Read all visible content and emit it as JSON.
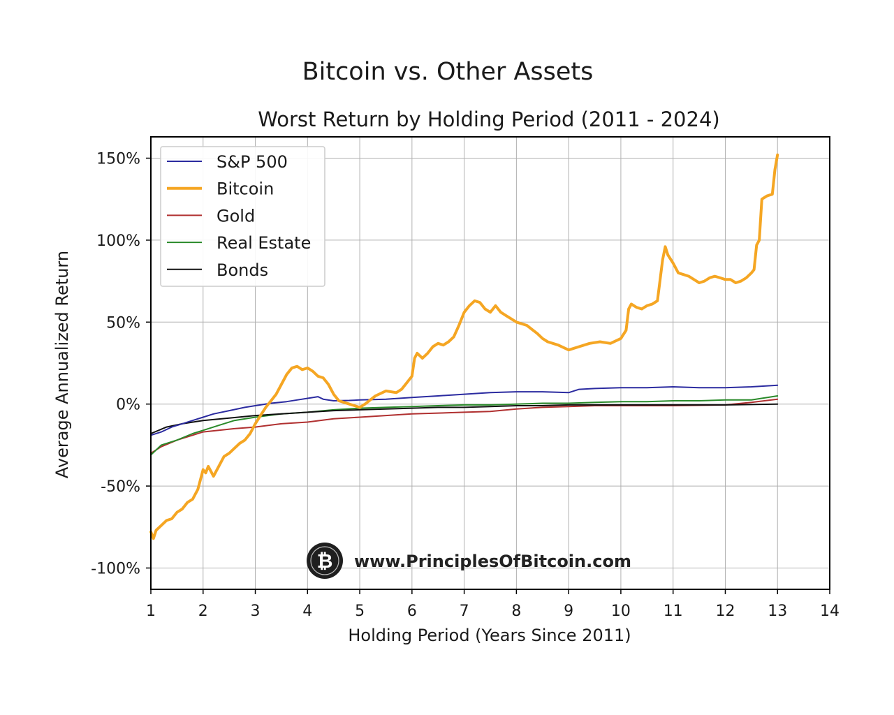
{
  "chart_data": {
    "type": "line",
    "suptitle": "Bitcoin vs. Other Assets",
    "title": "Worst Return by Holding Period (2011 - 2024)",
    "xlabel": "Holding Period (Years Since 2011)",
    "ylabel": "Average Annualized Return",
    "xlim": [
      1,
      14
    ],
    "ylim": [
      -113,
      163
    ],
    "x_ticks": [
      1,
      2,
      3,
      4,
      5,
      6,
      7,
      8,
      9,
      10,
      11,
      12,
      13,
      14
    ],
    "y_ticks": [
      {
        "value": 150,
        "label": "150%"
      },
      {
        "value": 100,
        "label": "100%"
      },
      {
        "value": 50,
        "label": "50%"
      },
      {
        "value": 0,
        "label": "0%"
      },
      {
        "value": -50,
        "label": "-50%"
      },
      {
        "value": -100,
        "label": "-100%"
      }
    ],
    "grid": true,
    "legend_position": "upper-left",
    "series": [
      {
        "name": "S&P 500",
        "color": "#2b2ba0",
        "width": 2,
        "points": [
          [
            1,
            -19
          ],
          [
            1.2,
            -17
          ],
          [
            1.4,
            -14
          ],
          [
            1.6,
            -12
          ],
          [
            1.8,
            -10
          ],
          [
            2,
            -8
          ],
          [
            2.2,
            -6
          ],
          [
            2.5,
            -4
          ],
          [
            2.8,
            -2
          ],
          [
            3,
            -1
          ],
          [
            3.3,
            0.5
          ],
          [
            3.6,
            1.5
          ],
          [
            3.8,
            2.5
          ],
          [
            4,
            3.5
          ],
          [
            4.2,
            4.5
          ],
          [
            4.3,
            3
          ],
          [
            4.5,
            2
          ],
          [
            4.8,
            2.2
          ],
          [
            5,
            2.5
          ],
          [
            5.5,
            3
          ],
          [
            6,
            4
          ],
          [
            6.5,
            5
          ],
          [
            7,
            6
          ],
          [
            7.5,
            7
          ],
          [
            8,
            7.5
          ],
          [
            8.5,
            7.5
          ],
          [
            9,
            7
          ],
          [
            9.2,
            9
          ],
          [
            9.5,
            9.5
          ],
          [
            10,
            10
          ],
          [
            10.5,
            10
          ],
          [
            11,
            10.5
          ],
          [
            11.5,
            10
          ],
          [
            12,
            10
          ],
          [
            12.5,
            10.5
          ],
          [
            13,
            11.5
          ]
        ]
      },
      {
        "name": "Bitcoin",
        "color": "#f5a623",
        "width": 4,
        "points": [
          [
            1,
            -78
          ],
          [
            1.05,
            -82
          ],
          [
            1.1,
            -77
          ],
          [
            1.2,
            -74
          ],
          [
            1.3,
            -71
          ],
          [
            1.4,
            -70
          ],
          [
            1.5,
            -66
          ],
          [
            1.6,
            -64
          ],
          [
            1.7,
            -60
          ],
          [
            1.8,
            -58
          ],
          [
            1.9,
            -52
          ],
          [
            2,
            -40
          ],
          [
            2.05,
            -42
          ],
          [
            2.1,
            -38
          ],
          [
            2.2,
            -44
          ],
          [
            2.3,
            -38
          ],
          [
            2.4,
            -32
          ],
          [
            2.5,
            -30
          ],
          [
            2.6,
            -27
          ],
          [
            2.7,
            -24
          ],
          [
            2.8,
            -22
          ],
          [
            2.9,
            -18
          ],
          [
            3,
            -12
          ],
          [
            3.1,
            -7
          ],
          [
            3.2,
            -2
          ],
          [
            3.3,
            2
          ],
          [
            3.4,
            6
          ],
          [
            3.5,
            12
          ],
          [
            3.6,
            18
          ],
          [
            3.7,
            22
          ],
          [
            3.8,
            23
          ],
          [
            3.9,
            21
          ],
          [
            4,
            22
          ],
          [
            4.1,
            20
          ],
          [
            4.2,
            17
          ],
          [
            4.3,
            16
          ],
          [
            4.4,
            12
          ],
          [
            4.5,
            6
          ],
          [
            4.6,
            2
          ],
          [
            4.7,
            1
          ],
          [
            4.8,
            0
          ],
          [
            4.9,
            -1
          ],
          [
            5,
            -2
          ],
          [
            5.1,
            0
          ],
          [
            5.3,
            5
          ],
          [
            5.5,
            8
          ],
          [
            5.7,
            7
          ],
          [
            5.8,
            9
          ],
          [
            5.9,
            13
          ],
          [
            6,
            17
          ],
          [
            6.05,
            28
          ],
          [
            6.1,
            31
          ],
          [
            6.2,
            28
          ],
          [
            6.3,
            31
          ],
          [
            6.4,
            35
          ],
          [
            6.5,
            37
          ],
          [
            6.6,
            36
          ],
          [
            6.7,
            38
          ],
          [
            6.8,
            41
          ],
          [
            6.9,
            48
          ],
          [
            7,
            56
          ],
          [
            7.1,
            60
          ],
          [
            7.2,
            63
          ],
          [
            7.3,
            62
          ],
          [
            7.4,
            58
          ],
          [
            7.5,
            56
          ],
          [
            7.6,
            60
          ],
          [
            7.7,
            56
          ],
          [
            7.8,
            54
          ],
          [
            7.9,
            52
          ],
          [
            8,
            50
          ],
          [
            8.2,
            48
          ],
          [
            8.4,
            43
          ],
          [
            8.5,
            40
          ],
          [
            8.6,
            38
          ],
          [
            8.8,
            36
          ],
          [
            9,
            33
          ],
          [
            9.2,
            35
          ],
          [
            9.4,
            37
          ],
          [
            9.6,
            38
          ],
          [
            9.8,
            37
          ],
          [
            10,
            40
          ],
          [
            10.1,
            45
          ],
          [
            10.15,
            58
          ],
          [
            10.2,
            61
          ],
          [
            10.3,
            59
          ],
          [
            10.4,
            58
          ],
          [
            10.5,
            60
          ],
          [
            10.6,
            61
          ],
          [
            10.7,
            63
          ],
          [
            10.8,
            88
          ],
          [
            10.85,
            96
          ],
          [
            10.9,
            91
          ],
          [
            11,
            86
          ],
          [
            11.1,
            80
          ],
          [
            11.2,
            79
          ],
          [
            11.3,
            78
          ],
          [
            11.4,
            76
          ],
          [
            11.5,
            74
          ],
          [
            11.6,
            75
          ],
          [
            11.7,
            77
          ],
          [
            11.8,
            78
          ],
          [
            11.9,
            77
          ],
          [
            12,
            76
          ],
          [
            12.1,
            76
          ],
          [
            12.2,
            74
          ],
          [
            12.3,
            75
          ],
          [
            12.4,
            77
          ],
          [
            12.5,
            80
          ],
          [
            12.55,
            82
          ],
          [
            12.6,
            97
          ],
          [
            12.65,
            100
          ],
          [
            12.7,
            125
          ],
          [
            12.8,
            127
          ],
          [
            12.9,
            128
          ],
          [
            12.95,
            143
          ],
          [
            13,
            152
          ]
        ]
      },
      {
        "name": "Gold",
        "color": "#b03030",
        "width": 2,
        "points": [
          [
            1,
            -30
          ],
          [
            1.2,
            -26
          ],
          [
            1.5,
            -22
          ],
          [
            1.8,
            -19
          ],
          [
            2,
            -17
          ],
          [
            2.3,
            -16
          ],
          [
            2.6,
            -15
          ],
          [
            3,
            -14
          ],
          [
            3.5,
            -12
          ],
          [
            4,
            -11
          ],
          [
            4.5,
            -9
          ],
          [
            5,
            -8
          ],
          [
            5.5,
            -7
          ],
          [
            6,
            -6
          ],
          [
            6.5,
            -5.5
          ],
          [
            7,
            -5
          ],
          [
            7.5,
            -4.5
          ],
          [
            8,
            -3
          ],
          [
            8.5,
            -2
          ],
          [
            9,
            -1.5
          ],
          [
            9.5,
            -1
          ],
          [
            10,
            -1
          ],
          [
            11,
            -1
          ],
          [
            12,
            -0.5
          ],
          [
            12.5,
            1
          ],
          [
            13,
            3
          ]
        ]
      },
      {
        "name": "Real Estate",
        "color": "#2a8a2a",
        "width": 2,
        "points": [
          [
            1,
            -31
          ],
          [
            1.2,
            -25
          ],
          [
            1.5,
            -22
          ],
          [
            1.8,
            -18
          ],
          [
            2,
            -16
          ],
          [
            2.3,
            -13
          ],
          [
            2.6,
            -10
          ],
          [
            3,
            -8
          ],
          [
            3.5,
            -6
          ],
          [
            4,
            -5
          ],
          [
            4.5,
            -3.5
          ],
          [
            5,
            -2.5
          ],
          [
            5.5,
            -2
          ],
          [
            6,
            -1.5
          ],
          [
            6.5,
            -1
          ],
          [
            7,
            -0.5
          ],
          [
            7.5,
            -0.5
          ],
          [
            8,
            0
          ],
          [
            8.5,
            0.5
          ],
          [
            9,
            0.5
          ],
          [
            9.5,
            1
          ],
          [
            10,
            1.5
          ],
          [
            10.5,
            1.5
          ],
          [
            11,
            2
          ],
          [
            11.5,
            2
          ],
          [
            12,
            2.5
          ],
          [
            12.5,
            2.5
          ],
          [
            13,
            5
          ]
        ]
      },
      {
        "name": "Bonds",
        "color": "#111111",
        "width": 2,
        "points": [
          [
            1,
            -18
          ],
          [
            1.3,
            -14
          ],
          [
            1.6,
            -12
          ],
          [
            2,
            -10
          ],
          [
            2.5,
            -8.5
          ],
          [
            3,
            -7
          ],
          [
            3.5,
            -6
          ],
          [
            4,
            -5
          ],
          [
            4.5,
            -4
          ],
          [
            5,
            -3.5
          ],
          [
            5.5,
            -3
          ],
          [
            6,
            -2.5
          ],
          [
            6.5,
            -2
          ],
          [
            7,
            -2
          ],
          [
            7.5,
            -1.5
          ],
          [
            8,
            -1
          ],
          [
            8.5,
            -1
          ],
          [
            9,
            -0.5
          ],
          [
            9.5,
            -0.5
          ],
          [
            10,
            -0.5
          ],
          [
            11,
            -0.5
          ],
          [
            12,
            -0.5
          ],
          [
            13,
            0
          ]
        ]
      }
    ]
  },
  "watermark": {
    "text": "www.PrinciplesOfBitcoin.com",
    "icon_glyph": "₿",
    "icon": "bitcoin-logo-icon"
  }
}
